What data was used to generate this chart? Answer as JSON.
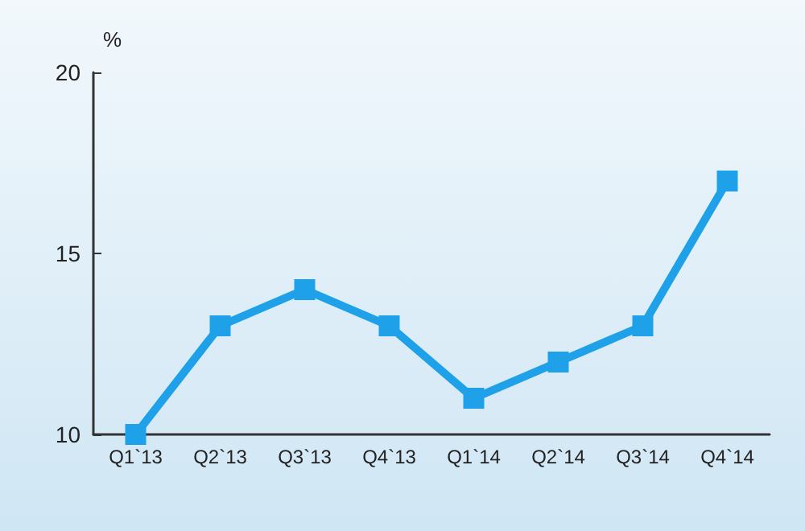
{
  "chart_data": {
    "type": "line",
    "ylabel": "%",
    "categories": [
      "Q1`13",
      "Q2`13",
      "Q3`13",
      "Q4`13",
      "Q1`14",
      "Q2`14",
      "Q3`14",
      "Q4`14"
    ],
    "series": [
      {
        "color": "#1ea1e8",
        "values": [
          10,
          13,
          14,
          13,
          11,
          12,
          13,
          17
        ]
      }
    ],
    "ylim": [
      10,
      20
    ],
    "yticks": [
      10,
      15,
      20
    ],
    "grid": false,
    "marker": "square",
    "line_style": "solid"
  }
}
